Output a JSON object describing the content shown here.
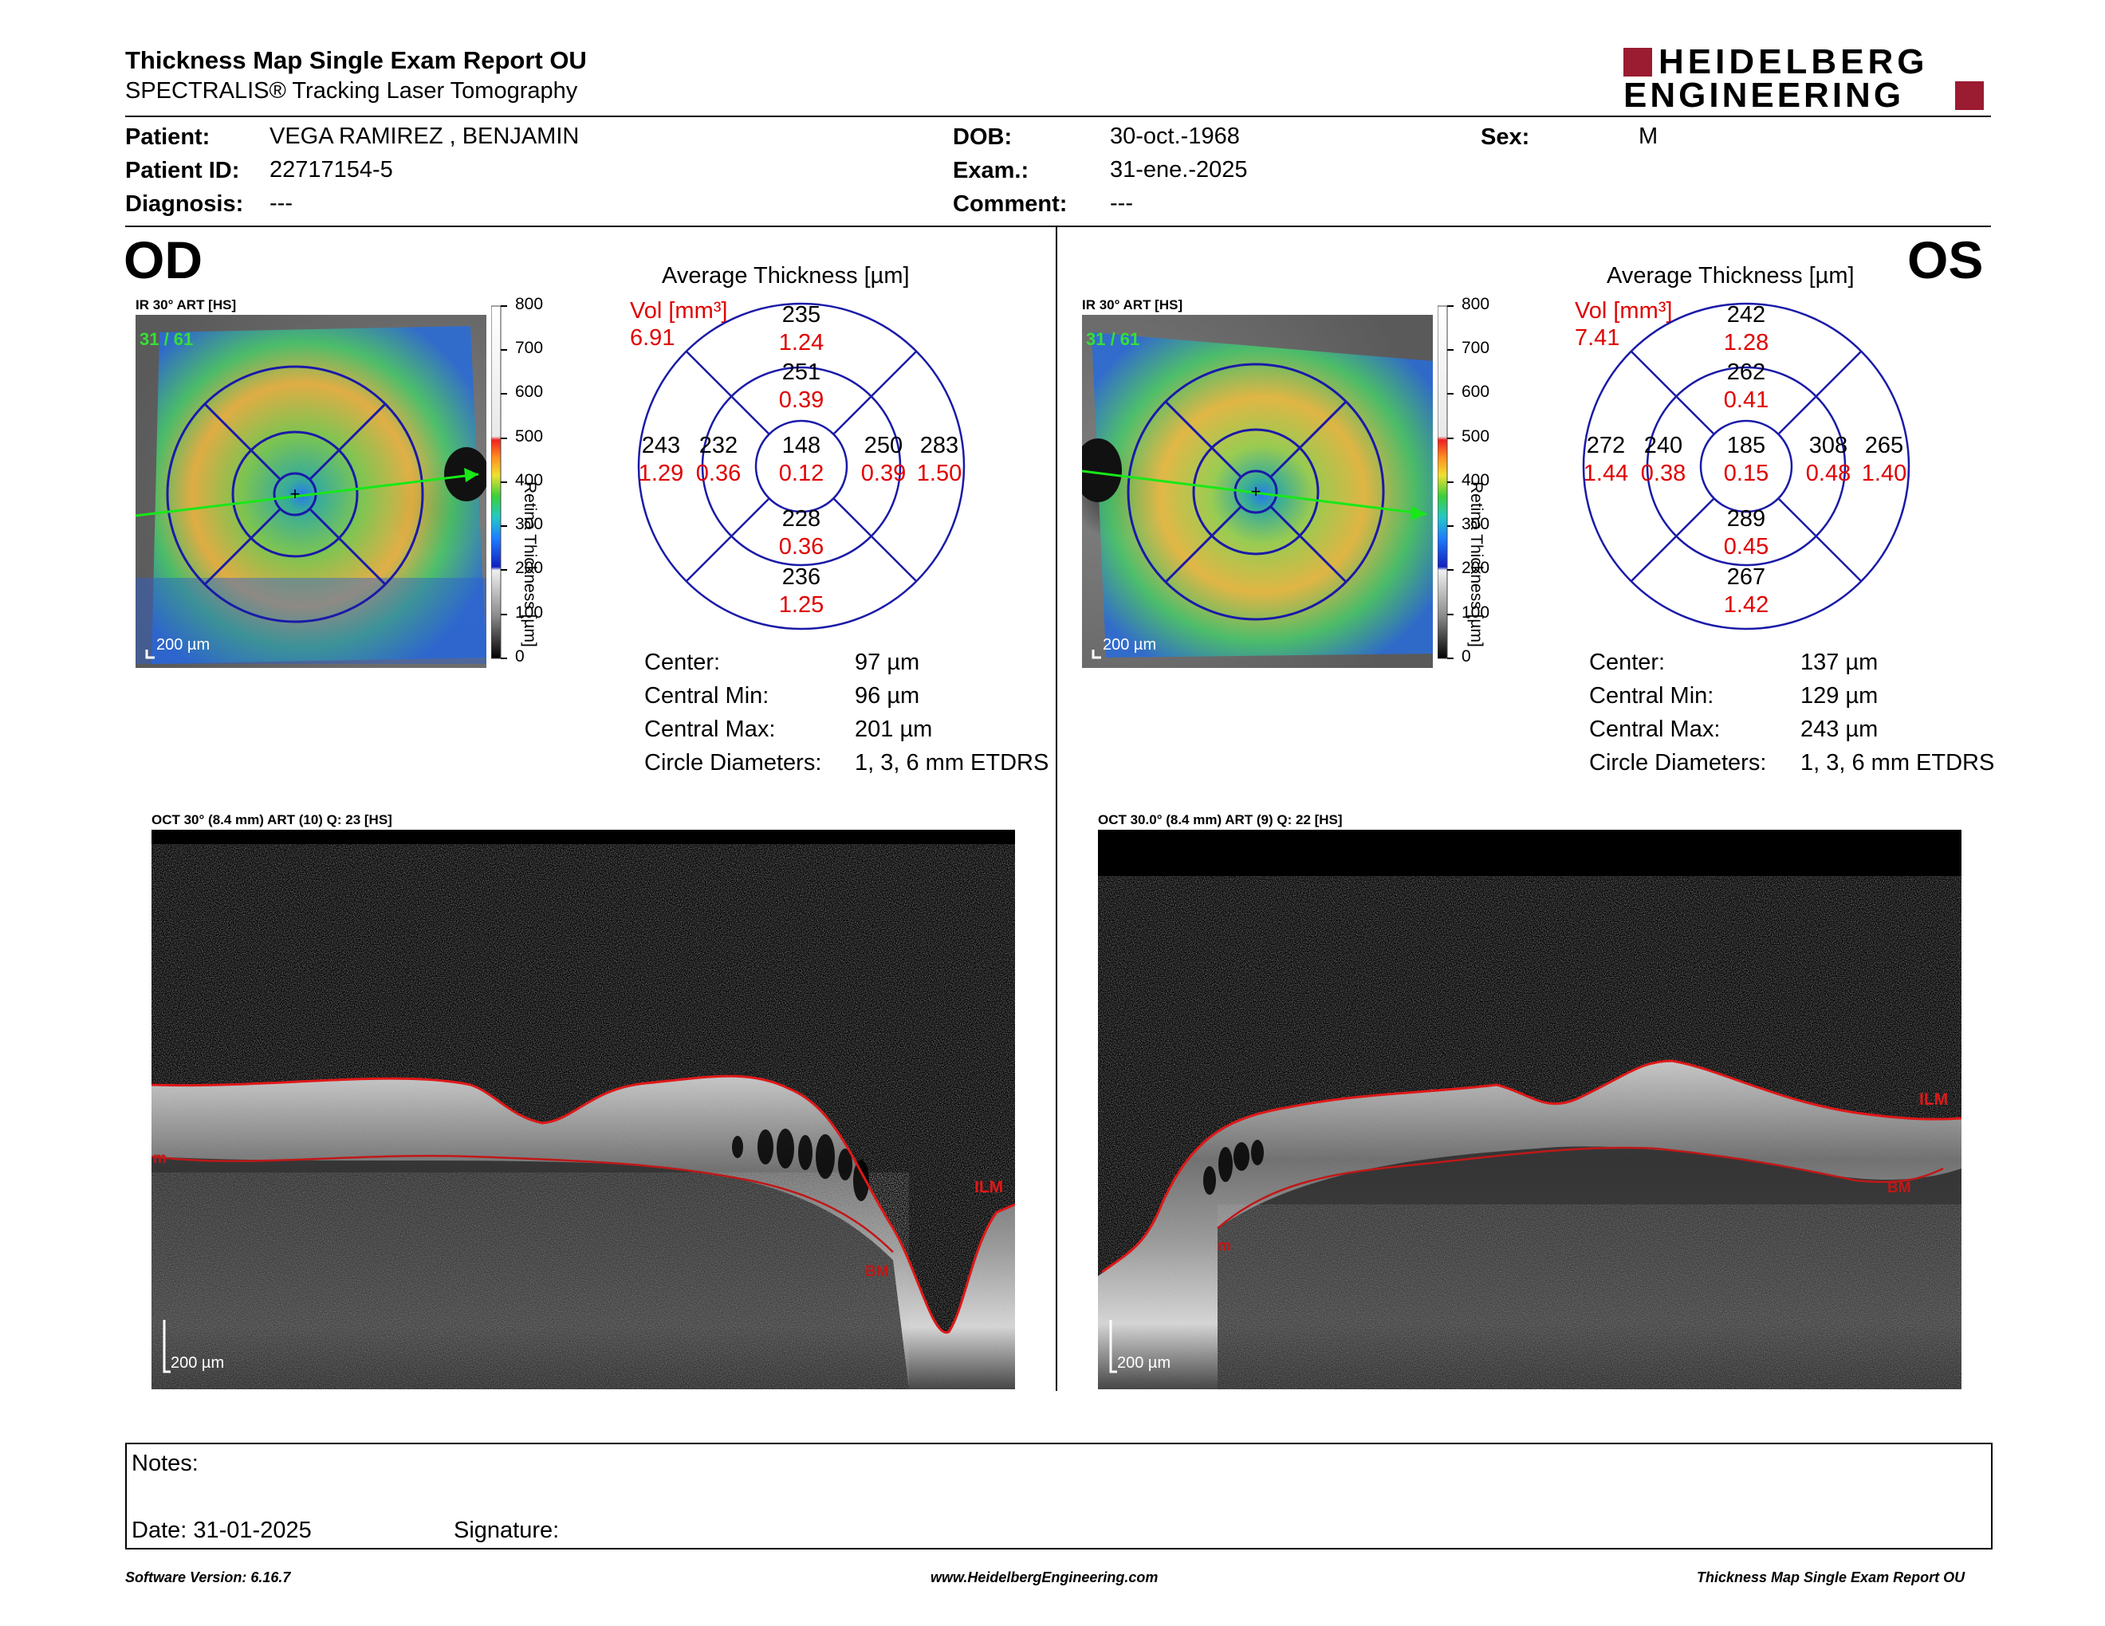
{
  "header": {
    "title": "Thickness Map Single Exam Report OU",
    "subtitle": "SPECTRALIS® Tracking Laser Tomography",
    "logo_line1": "HEIDELBERG",
    "logo_line2": "ENGINEERING",
    "brand_color": "#9b1b30"
  },
  "patient": {
    "patient_label": "Patient:",
    "patient_value": "VEGA RAMIREZ , BENJAMIN",
    "id_label": "Patient ID:",
    "id_value": "22717154-5",
    "diagnosis_label": "Diagnosis:",
    "diagnosis_value": "---",
    "dob_label": "DOB:",
    "dob_value": "30-oct.-1968",
    "exam_label": "Exam.:",
    "exam_value": "31-ene.-2025",
    "comment_label": "Comment:",
    "comment_value": "---",
    "sex_label": "Sex:",
    "sex_value": "M"
  },
  "od": {
    "eye": "OD",
    "ir_label": "IR 30° ART [HS]",
    "frames": "31 / 61",
    "scalebar": "200 µm",
    "colorbar_title": "Retina Thickness [µm]",
    "colorbar_ticks": [
      "800",
      "700",
      "600",
      "500",
      "400",
      "300",
      "200",
      "100",
      "0"
    ],
    "avg_title": "Average Thickness [µm]",
    "vol_label": "Vol [mm³]",
    "vol_value": "6.91",
    "sectors": {
      "outer_sup": {
        "t": "235",
        "v": "1.24"
      },
      "inner_sup": {
        "t": "251",
        "v": "0.39"
      },
      "outer_left": {
        "t": "243",
        "v": "1.29"
      },
      "inner_left": {
        "t": "232",
        "v": "0.36"
      },
      "center": {
        "t": "148",
        "v": "0.12"
      },
      "inner_right": {
        "t": "250",
        "v": "0.39"
      },
      "outer_right": {
        "t": "283",
        "v": "1.50"
      },
      "inner_inf": {
        "t": "228",
        "v": "0.36"
      },
      "outer_inf": {
        "t": "236",
        "v": "1.25"
      }
    },
    "stats": [
      {
        "label": "Center:",
        "value": "97 µm"
      },
      {
        "label": "Central Min:",
        "value": "96 µm"
      },
      {
        "label": "Central Max:",
        "value": "201 µm"
      },
      {
        "label": "Circle Diameters:",
        "value": "1, 3, 6 mm ETDRS"
      }
    ],
    "oct_label": "OCT 30° (8.4 mm) ART (10) Q: 23 [HS]",
    "oct_scalebar": "200 µm",
    "layer_ilm": "ILM",
    "layer_bm": "BM",
    "layer_m": "m"
  },
  "os": {
    "eye": "OS",
    "ir_label": "IR 30° ART [HS]",
    "frames": "31 / 61",
    "scalebar": "200 µm",
    "colorbar_title": "Retina Thickness [µm]",
    "colorbar_ticks": [
      "800",
      "700",
      "600",
      "500",
      "400",
      "300",
      "200",
      "100",
      "0"
    ],
    "avg_title": "Average Thickness [µm]",
    "vol_label": "Vol [mm³]",
    "vol_value": "7.41",
    "sectors": {
      "outer_sup": {
        "t": "242",
        "v": "1.28"
      },
      "inner_sup": {
        "t": "262",
        "v": "0.41"
      },
      "outer_left": {
        "t": "272",
        "v": "1.44"
      },
      "inner_left": {
        "t": "240",
        "v": "0.38"
      },
      "center": {
        "t": "185",
        "v": "0.15"
      },
      "inner_right": {
        "t": "308",
        "v": "0.48"
      },
      "outer_right": {
        "t": "265",
        "v": "1.40"
      },
      "inner_inf": {
        "t": "289",
        "v": "0.45"
      },
      "outer_inf": {
        "t": "267",
        "v": "1.42"
      }
    },
    "stats": [
      {
        "label": "Center:",
        "value": "137 µm"
      },
      {
        "label": "Central Min:",
        "value": "129 µm"
      },
      {
        "label": "Central Max:",
        "value": "243 µm"
      },
      {
        "label": "Circle Diameters:",
        "value": "1, 3, 6 mm ETDRS"
      }
    ],
    "oct_label": "OCT 30.0° (8.4 mm) ART (9) Q: 22 [HS]",
    "oct_scalebar": "200 µm",
    "layer_ilm": "ILM",
    "layer_bm": "BM",
    "layer_m": "m"
  },
  "notes": {
    "notes_label": "Notes:",
    "date_label": "Date: 31-01-2025",
    "signature_label": "Signature:"
  },
  "footer": {
    "software": "Software Version: 6.16.7",
    "website": "www.HeidelbergEngineering.com",
    "report_name": "Thickness Map Single Exam Report OU"
  }
}
